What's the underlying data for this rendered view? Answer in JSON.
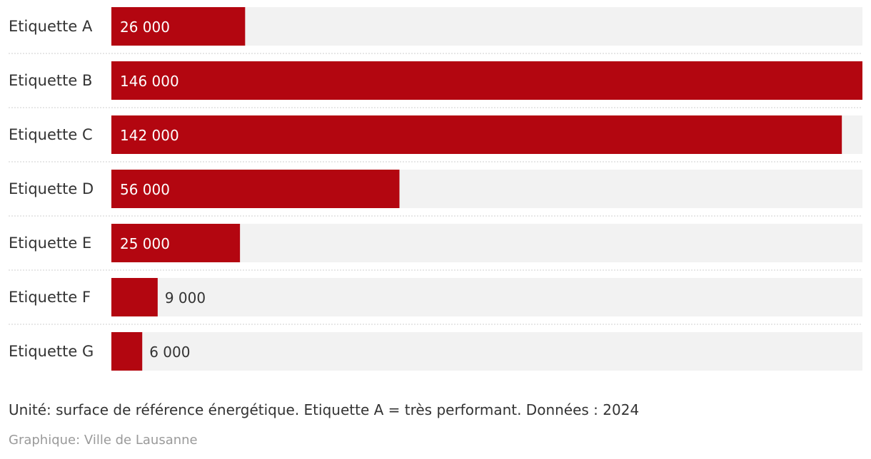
{
  "chart_data": {
    "type": "bar",
    "orientation": "horizontal",
    "categories": [
      "Etiquette A",
      "Etiquette B",
      "Etiquette C",
      "Etiquette D",
      "Etiquette E",
      "Etiquette F",
      "Etiquette G"
    ],
    "values": [
      26000,
      146000,
      142000,
      56000,
      25000,
      9000,
      6000
    ],
    "value_labels": [
      "26 000",
      "146 000",
      "142 000",
      "56 000",
      "25 000",
      "9 000",
      "6 000"
    ],
    "xlim": [
      0,
      146000
    ],
    "grid": false,
    "bar_color": "#b30610",
    "track_color": "#f2f2f2",
    "note": "Unité: surface de référence énergétique. Etiquette A = très performant. Données : 2024",
    "source": "Graphique: Ville de Lausanne"
  }
}
